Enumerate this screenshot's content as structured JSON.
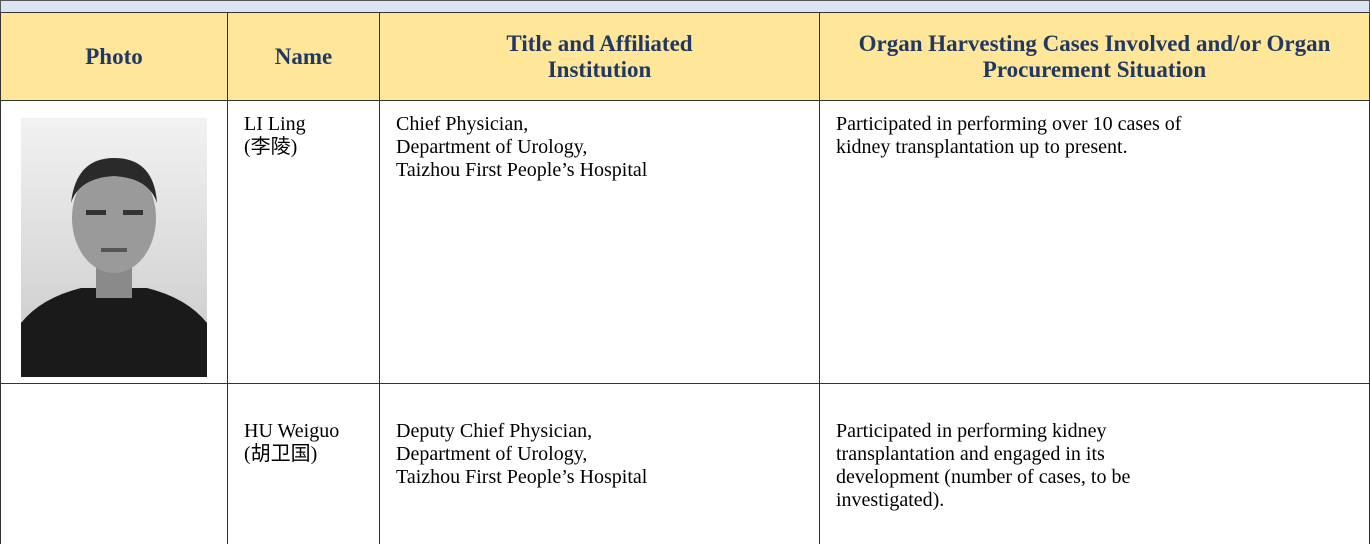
{
  "table": {
    "header": [
      "Photo",
      "Name",
      "Title and Affiliated Institution",
      "Organ Harvesting Cases Involved and/or Organ Procurement Situation"
    ],
    "rows": [
      {
        "name": [
          "LI Ling",
          "(李陵)"
        ],
        "title": [
          "Chief Physician,",
          "Department of Urology,",
          "Taizhou First People’s Hospital"
        ],
        "cases": [
          "Participated in performing  over 10 cases of",
          "kidney transplantation up to present."
        ]
      },
      {
        "name": [
          "HU Weiguo",
          "(胡卫国)"
        ],
        "title": [
          "Deputy Chief Physician,",
          "Department of Urology,",
          "Taizhou First People’s Hospital"
        ],
        "cases": [
          "Participated in performing  kidney",
          "transplantation and engaged in its",
          "development (number of cases, to be",
          "investigated)."
        ]
      }
    ]
  }
}
